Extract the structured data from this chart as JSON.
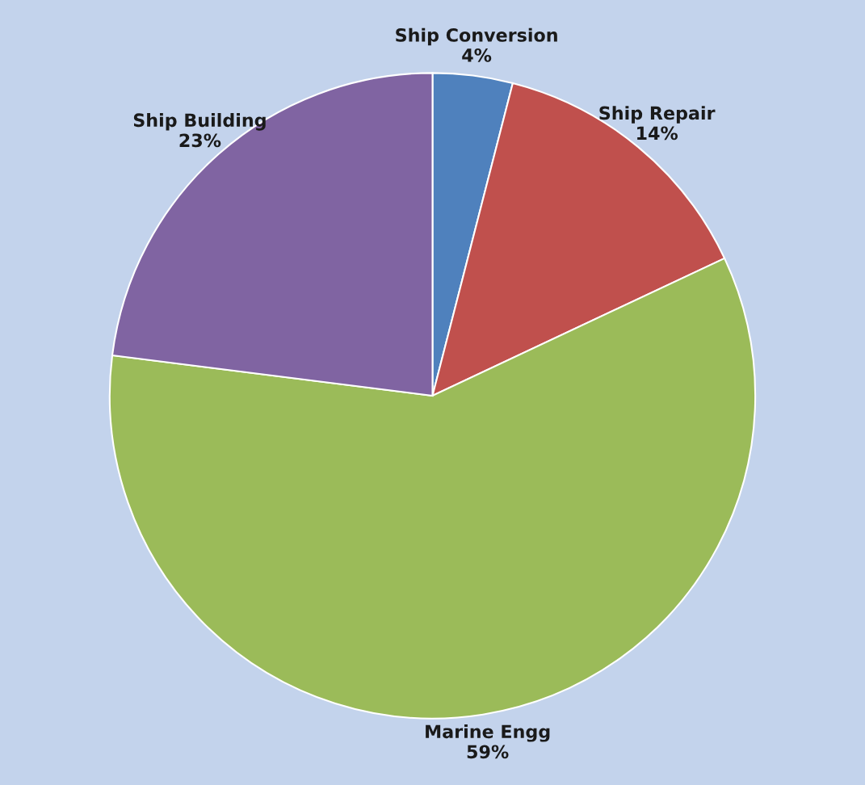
{
  "chart_data": {
    "type": "pie",
    "categories": [
      "Ship Conversion",
      "Ship Repair",
      "Marine Engg",
      "Ship Building"
    ],
    "values": [
      4,
      14,
      59,
      23
    ],
    "value_labels": [
      "4%",
      "14%",
      "59%",
      "23%"
    ],
    "colors": [
      "#4f81bd",
      "#c0504d",
      "#9bbb59",
      "#8064a2"
    ],
    "legend": false
  }
}
